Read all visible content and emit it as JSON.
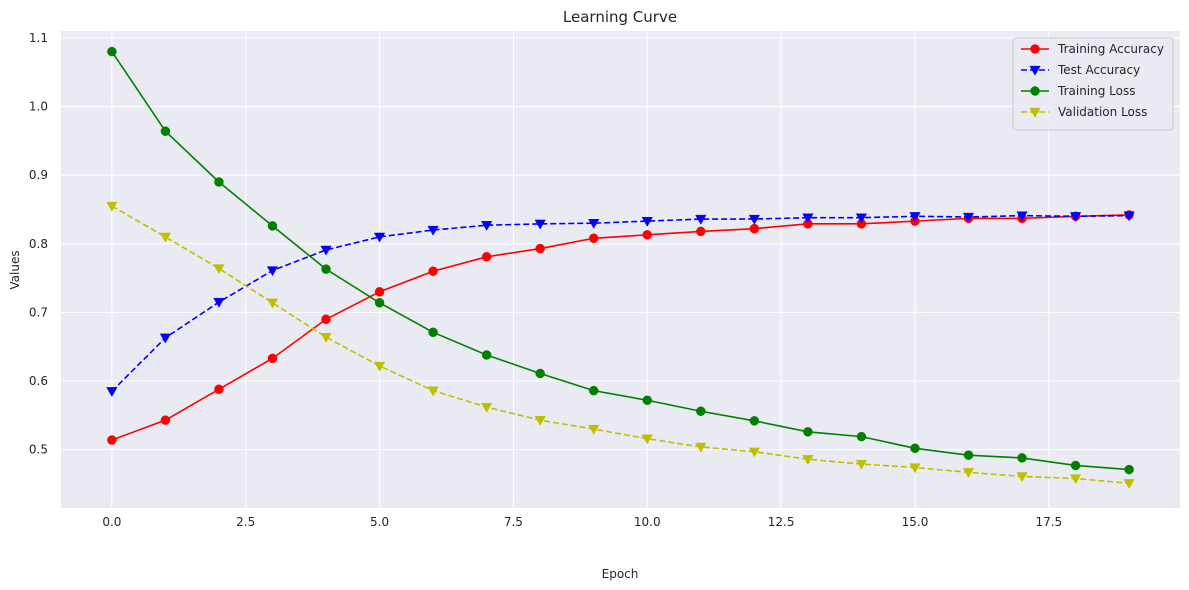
{
  "chart_data": {
    "type": "line",
    "title": "Learning Curve",
    "xlabel": "Epoch",
    "ylabel": "Values",
    "xlim": [
      -0.95,
      19.95
    ],
    "ylim": [
      0.415,
      1.11
    ],
    "xticks": [
      0.0,
      2.5,
      5.0,
      7.5,
      10.0,
      12.5,
      15.0,
      17.5
    ],
    "xtick_labels": [
      "0.0",
      "2.5",
      "5.0",
      "7.5",
      "10.0",
      "12.5",
      "15.0",
      "17.5"
    ],
    "yticks": [
      0.5,
      0.6,
      0.7,
      0.8,
      0.9,
      1.0,
      1.1
    ],
    "ytick_labels": [
      "0.5",
      "0.6",
      "0.7",
      "0.8",
      "0.9",
      "1.0",
      "1.1"
    ],
    "grid": true,
    "legend_position": "top-right",
    "x": [
      0,
      1,
      2,
      3,
      4,
      5,
      6,
      7,
      8,
      9,
      10,
      11,
      12,
      13,
      14,
      15,
      16,
      17,
      18,
      19
    ],
    "series": [
      {
        "name": "Training Accuracy",
        "color": "#ff0000",
        "line_style": "solid",
        "marker": "circle",
        "values": [
          0.514,
          0.543,
          0.588,
          0.633,
          0.69,
          0.73,
          0.76,
          0.781,
          0.793,
          0.808,
          0.813,
          0.818,
          0.822,
          0.829,
          0.829,
          0.833,
          0.837,
          0.837,
          0.84,
          0.842
        ]
      },
      {
        "name": "Test Accuracy",
        "color": "#0000ff",
        "line_style": "dashed",
        "marker": "triangle-down",
        "values": [
          0.585,
          0.663,
          0.715,
          0.761,
          0.791,
          0.81,
          0.82,
          0.827,
          0.829,
          0.83,
          0.833,
          0.836,
          0.836,
          0.838,
          0.838,
          0.84,
          0.839,
          0.841,
          0.84,
          0.841
        ]
      },
      {
        "name": "Training Loss",
        "color": "#008000",
        "line_style": "solid",
        "marker": "circle",
        "values": [
          1.08,
          0.964,
          0.89,
          0.826,
          0.763,
          0.714,
          0.671,
          0.638,
          0.611,
          0.586,
          0.572,
          0.556,
          0.542,
          0.526,
          0.519,
          0.502,
          0.492,
          0.488,
          0.477,
          0.471
        ]
      },
      {
        "name": "Validation Loss",
        "color": "#bfbf00",
        "line_style": "dashed",
        "marker": "triangle-down",
        "values": [
          0.855,
          0.81,
          0.764,
          0.714,
          0.664,
          0.622,
          0.586,
          0.562,
          0.543,
          0.53,
          0.516,
          0.504,
          0.497,
          0.486,
          0.479,
          0.474,
          0.467,
          0.461,
          0.458,
          0.451
        ]
      }
    ]
  }
}
